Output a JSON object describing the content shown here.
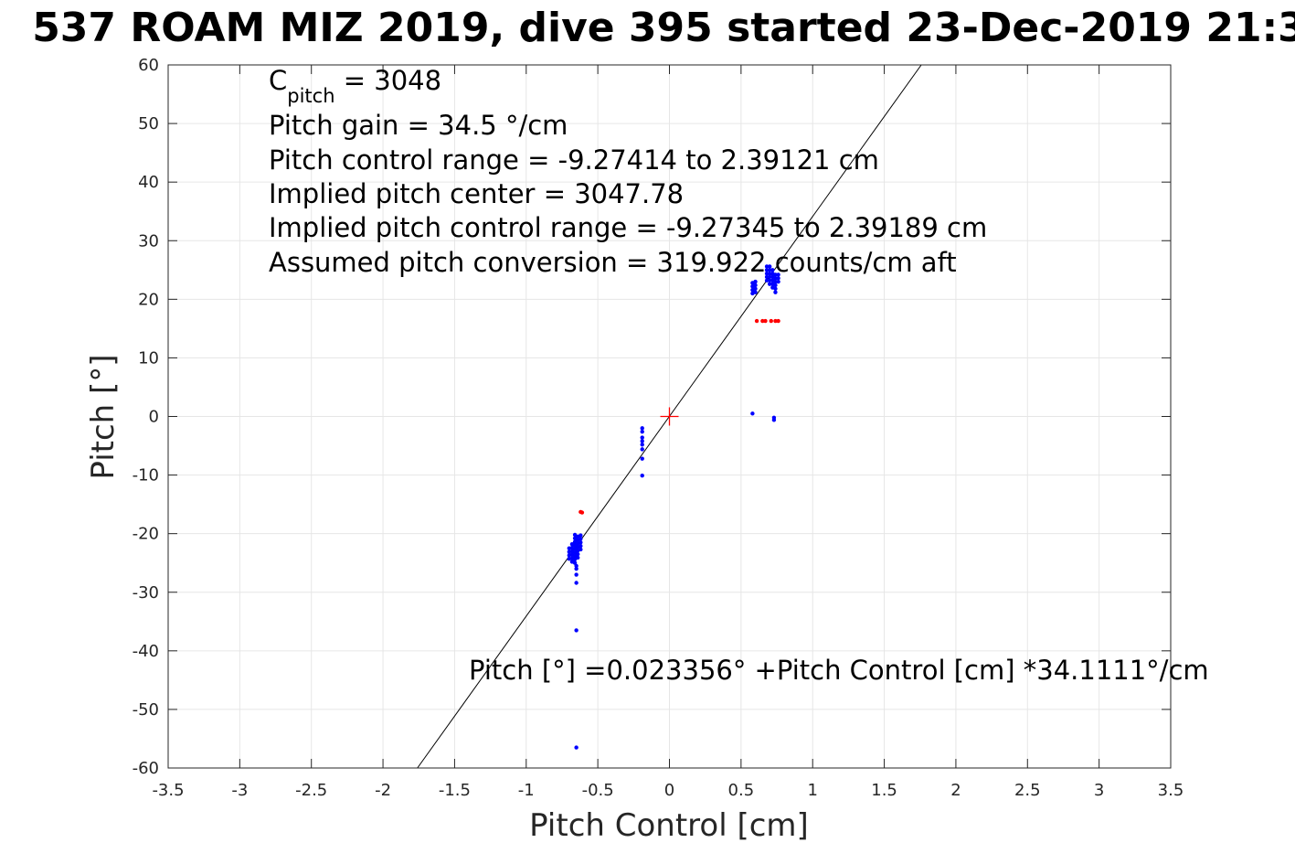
{
  "chart_data": {
    "type": "scatter",
    "title": "537 ROAM MIZ 2019, dive 395 started 23-Dec-2019 21:3",
    "xlabel": "Pitch Control [cm]",
    "ylabel": "Pitch [°]",
    "xlim": [
      -3.5,
      3.5
    ],
    "ylim": [
      -60,
      60
    ],
    "xticks": [
      "-3.5",
      "-3",
      "-2.5",
      "-2",
      "-1.5",
      "-1",
      "-0.5",
      "0",
      "0.5",
      "1",
      "1.5",
      "2",
      "2.5",
      "3",
      "3.5"
    ],
    "yticks": [
      "60",
      "50",
      "40",
      "30",
      "20",
      "10",
      "0",
      "-10",
      "-20",
      "-30",
      "-40",
      "-50",
      "-60"
    ],
    "grid": true,
    "colors": {
      "blue_points": "#0000ff",
      "red_points": "#ff0000",
      "fit_line": "#000000",
      "center_marker": "#ff0000",
      "grid": "#e6e6e6"
    },
    "annotations": {
      "c_pitch_main": "C",
      "c_pitch_sub": "pitch",
      "c_pitch_value": " = 3048",
      "gain": "Pitch gain = 34.5 °/cm",
      "control_range": "Pitch control range = -9.27414 to 2.39121 cm",
      "implied_center": "Implied pitch center = 3047.78",
      "implied_range": "Implied pitch control range = -9.27345 to 2.39189 cm",
      "conversion": "Assumed pitch conversion = 319.922 counts/cm aft",
      "fit_equation": "Pitch [°] =0.023356° +Pitch Control [cm] *34.1111°/cm"
    },
    "fit": {
      "intercept": 0.023356,
      "slope": 34.1111
    },
    "center_marker": {
      "x": 0,
      "y": 0
    },
    "series": [
      {
        "color": "blue",
        "points": [
          [
            -0.66,
            -20.2
          ],
          [
            -0.66,
            -20.8
          ],
          [
            -0.66,
            -21.4
          ],
          [
            -0.66,
            -22.0
          ],
          [
            -0.66,
            -22.6
          ],
          [
            -0.66,
            -23.2
          ],
          [
            -0.66,
            -23.8
          ],
          [
            -0.66,
            -24.4
          ],
          [
            -0.66,
            -25.0
          ],
          [
            -0.68,
            -21.8
          ],
          [
            -0.68,
            -22.4
          ],
          [
            -0.68,
            -23.0
          ],
          [
            -0.68,
            -23.6
          ],
          [
            -0.68,
            -24.2
          ],
          [
            -0.68,
            -24.8
          ],
          [
            -0.64,
            -20.5
          ],
          [
            -0.64,
            -21.1
          ],
          [
            -0.64,
            -21.7
          ],
          [
            -0.64,
            -22.3
          ],
          [
            -0.64,
            -22.9
          ],
          [
            -0.64,
            -23.5
          ],
          [
            -0.64,
            -24.1
          ],
          [
            -0.62,
            -20.3
          ],
          [
            -0.62,
            -20.9
          ],
          [
            -0.62,
            -21.5
          ],
          [
            -0.62,
            -22.1
          ],
          [
            -0.62,
            -22.7
          ],
          [
            -0.7,
            -22.5
          ],
          [
            -0.7,
            -23.1
          ],
          [
            -0.7,
            -23.7
          ],
          [
            -0.7,
            -24.3
          ],
          [
            -0.65,
            -25.5
          ],
          [
            -0.65,
            -26.0
          ],
          [
            -0.65,
            -27.0
          ],
          [
            -0.65,
            -28.4
          ],
          [
            -0.65,
            -36.5
          ],
          [
            -0.65,
            -56.5
          ],
          [
            -0.19,
            -2.0
          ],
          [
            -0.19,
            -2.6
          ],
          [
            -0.19,
            -3.6
          ],
          [
            -0.19,
            -4.2
          ],
          [
            -0.19,
            -4.8
          ],
          [
            -0.19,
            -5.6
          ],
          [
            -0.19,
            -7.2
          ],
          [
            -0.19,
            -10.1
          ],
          [
            0.58,
            21.0
          ],
          [
            0.58,
            21.6
          ],
          [
            0.58,
            22.2
          ],
          [
            0.58,
            22.8
          ],
          [
            0.6,
            21.2
          ],
          [
            0.6,
            21.8
          ],
          [
            0.6,
            22.4
          ],
          [
            0.6,
            23.0
          ],
          [
            0.68,
            23.2
          ],
          [
            0.68,
            23.8
          ],
          [
            0.68,
            24.4
          ],
          [
            0.68,
            25.0
          ],
          [
            0.68,
            25.6
          ],
          [
            0.7,
            22.6
          ],
          [
            0.7,
            23.2
          ],
          [
            0.7,
            23.8
          ],
          [
            0.7,
            24.4
          ],
          [
            0.7,
            25.0
          ],
          [
            0.7,
            25.6
          ],
          [
            0.72,
            22.0
          ],
          [
            0.72,
            22.6
          ],
          [
            0.72,
            23.2
          ],
          [
            0.72,
            23.8
          ],
          [
            0.72,
            24.4
          ],
          [
            0.72,
            25.0
          ],
          [
            0.74,
            21.2
          ],
          [
            0.74,
            21.8
          ],
          [
            0.74,
            22.4
          ],
          [
            0.74,
            23.0
          ],
          [
            0.74,
            23.6
          ],
          [
            0.74,
            24.2
          ],
          [
            0.76,
            23.0
          ],
          [
            0.76,
            23.6
          ],
          [
            0.76,
            24.2
          ],
          [
            0.58,
            0.5
          ],
          [
            0.73,
            -0.2
          ],
          [
            0.73,
            -0.6
          ]
        ]
      },
      {
        "color": "red",
        "points": [
          [
            0.61,
            16.3
          ],
          [
            0.65,
            16.3
          ],
          [
            0.67,
            16.3
          ],
          [
            0.71,
            16.3
          ],
          [
            0.74,
            16.3
          ],
          [
            0.76,
            16.3
          ],
          [
            -0.62,
            -16.3
          ],
          [
            -0.61,
            -16.4
          ]
        ]
      }
    ]
  }
}
